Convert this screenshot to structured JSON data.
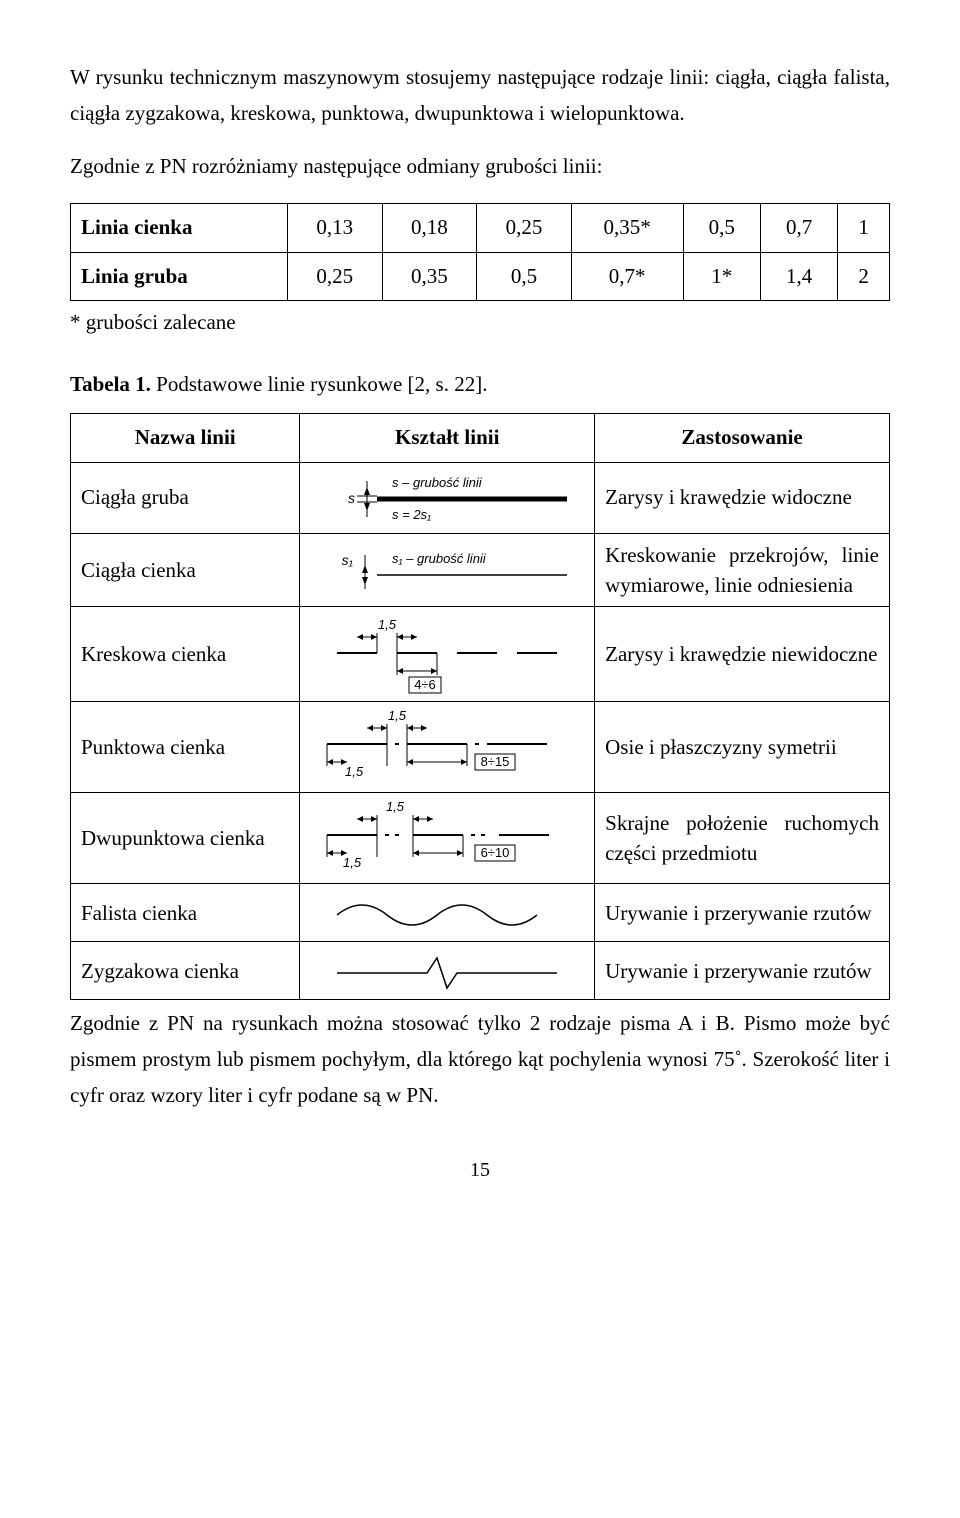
{
  "intro": {
    "p1": "W rysunku technicznym maszynowym stosujemy następujące rodzaje linii: ciągła, ciągła falista, ciągła zygzakowa, kreskowa, punktowa, dwupunktowa i wielopunktowa.",
    "p2": "Zgodnie z PN rozróżniamy następujące odmiany grubości linii:"
  },
  "grubosc_table": {
    "rows": [
      {
        "label": "Linia cienka",
        "vals": [
          "0,13",
          "0,18",
          "0,25",
          "0,35*",
          "0,5",
          "0,7",
          "1"
        ]
      },
      {
        "label": "Linia gruba",
        "vals": [
          "0,25",
          "0,35",
          "0,5",
          "0,7*",
          "1*",
          "1,4",
          "2"
        ]
      }
    ],
    "footnote": "* grubości zalecane"
  },
  "table_caption": "Tabela 1. Podstawowe linie rysunkowe [2, s. 22].",
  "lines_table": {
    "headers": [
      "Nazwa linii",
      "Kształt linii",
      "Zastosowanie"
    ],
    "rows": [
      {
        "name": "Ciągła gruba",
        "use": "Zarysy i krawędzie widoczne",
        "shape": {
          "type": "thick_solid",
          "label_top": "s – grubość linii",
          "label_bottom": "s = 2s₁"
        }
      },
      {
        "name": "Ciągła cienka",
        "use": "Kreskowanie przekrojów, linie wymiarowe, linie odniesienia",
        "shape": {
          "type": "thin_solid",
          "label_top": "s₁ – grubość linii"
        }
      },
      {
        "name": "Kreskowa cienka",
        "use": "Zarysy i krawędzie niewidoczne",
        "shape": {
          "type": "dashed",
          "dim_top": "1,5",
          "dim_bottom": "4÷6"
        }
      },
      {
        "name": "Punktowa cienka",
        "use": "Osie i płaszczyzny symetrii",
        "shape": {
          "type": "dash_dot",
          "dim_top": "1,5",
          "dim_bl": "1,5",
          "dim_br": "8÷15"
        }
      },
      {
        "name": "Dwupunktowa cienka",
        "use": "Skrajne położenie ruchomych części przedmiotu",
        "shape": {
          "type": "dash_2dot",
          "dim_top": "1,5",
          "dim_bl": "1,5",
          "dim_br": "6÷10"
        }
      },
      {
        "name": "Falista cienka",
        "use": "Urywanie i przerywanie rzutów",
        "shape": {
          "type": "wavy"
        }
      },
      {
        "name": "Zygzakowa cienka",
        "use": "Urywanie i przerywanie rzutów",
        "shape": {
          "type": "zigzag"
        }
      }
    ]
  },
  "closing": "Zgodnie z PN na rysunkach można stosować tylko 2 rodzaje pisma A i B. Pismo może być pismem prostym lub pismem pochyłym, dla którego kąt pochylenia wynosi 75˚. Szerokość liter i cyfr oraz wzory liter i cyfr podane są w PN.",
  "page_number": "15",
  "style": {
    "stroke": "#000000",
    "font": "italic 13px Arial, sans-serif",
    "box_font": "13px Arial, sans-serif"
  }
}
